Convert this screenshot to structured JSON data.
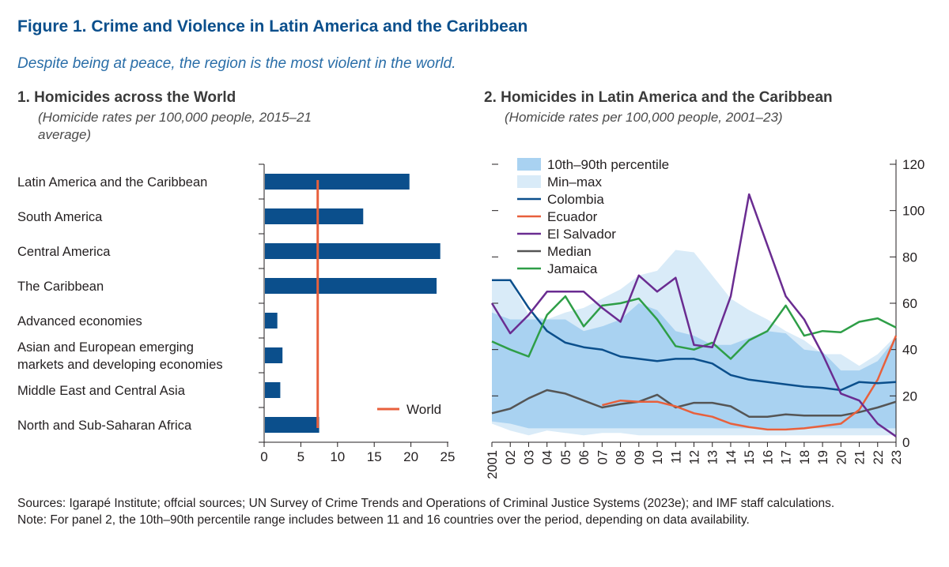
{
  "figure": {
    "title": "Figure 1. Crime and Violence in Latin America and the Caribbean",
    "subtitle": "Despite being at peace, the region is the most violent in the world."
  },
  "panel1": {
    "title": "1. Homicides across the World",
    "subtitle_line1": "(Homicide rates per 100,000 people, 2015–21",
    "subtitle_line2": "average)"
  },
  "panel2": {
    "title": "2. Homicides in Latin America and the Caribbean",
    "subtitle": "(Homicide rates per 100,000 people, 2001–23)"
  },
  "footer": {
    "sources": "Sources: Igarapé Institute; offcial sources; UN Survey of Crime Trends and Operations of Criminal Justice Systems (2023e); and IMF staff calculations.",
    "note": "Note: For panel 2, the 10th–90th percentile range includes between 11 and 16 countries over the period, depending on data availability."
  },
  "colors": {
    "bar": "#0b4f8c",
    "world_line": "#e8603c",
    "band_inner": "#a9d2f1",
    "band_outer": "#d9ebf8",
    "colombia": "#0b4f8c",
    "ecuador": "#e8603c",
    "el_salvador": "#6a2c91",
    "median": "#555555",
    "jamaica": "#2e9e47"
  },
  "chart_data": [
    {
      "type": "bar",
      "orientation": "horizontal",
      "categories": [
        [
          "Latin America and the Caribbean"
        ],
        [
          "South America"
        ],
        [
          "Central America"
        ],
        [
          "The Caribbean"
        ],
        [
          "Advanced economies"
        ],
        [
          "Asian and European emerging",
          "markets and developing economies"
        ],
        [
          "Middle East and Central Asia"
        ],
        [
          "North and Sub-Saharan Africa"
        ]
      ],
      "values": [
        19.8,
        13.5,
        24.0,
        23.5,
        1.8,
        2.5,
        2.2,
        7.5
      ],
      "reference_line": {
        "name": "World",
        "value": 7.3
      },
      "xlim": [
        0,
        25
      ],
      "xticks": [
        0,
        5,
        10,
        15,
        20,
        25
      ],
      "legend": "bottom-right"
    },
    {
      "type": "line",
      "x": [
        "2001",
        "02",
        "03",
        "04",
        "05",
        "06",
        "07",
        "08",
        "09",
        "10",
        "11",
        "12",
        "13",
        "14",
        "15",
        "16",
        "17",
        "18",
        "19",
        "20",
        "21",
        "22",
        "23"
      ],
      "ylim": [
        0,
        120
      ],
      "yticks": [
        0,
        20,
        40,
        60,
        80,
        100,
        120
      ],
      "y_axis_side": "right",
      "bands": [
        {
          "name": "Min–max",
          "lower": [
            8,
            5,
            3,
            5,
            4,
            3,
            4,
            4,
            3,
            3,
            3,
            3,
            3,
            3,
            3,
            3,
            3,
            3,
            3,
            3,
            3,
            3,
            3
          ],
          "upper": [
            70,
            70,
            55,
            53,
            56,
            58,
            62,
            66,
            72,
            74,
            83,
            82,
            72,
            62,
            57,
            53,
            48,
            44,
            38,
            38,
            33,
            38,
            46
          ]
        },
        {
          "name": "10th–90th percentile",
          "lower": [
            9,
            8,
            6,
            6,
            6,
            6,
            6,
            6,
            6,
            6,
            6,
            6,
            6,
            6,
            6,
            6,
            6,
            6,
            6,
            6,
            6,
            6,
            6
          ],
          "upper": [
            56,
            53,
            53,
            53,
            53,
            48,
            50,
            53,
            60,
            57,
            48,
            46,
            42,
            42,
            45,
            48,
            47,
            40,
            39,
            31,
            31,
            35,
            45
          ]
        }
      ],
      "series": [
        {
          "name": "Colombia",
          "values": [
            70,
            70,
            58,
            48,
            43,
            41,
            40,
            37,
            36,
            35,
            36,
            36,
            34,
            29,
            27,
            26,
            25,
            24,
            23.5,
            22.5,
            26,
            25.5,
            26
          ]
        },
        {
          "name": "Ecuador",
          "values": [
            null,
            null,
            null,
            null,
            null,
            null,
            16,
            18,
            17.5,
            17.5,
            15.5,
            12.5,
            11,
            8,
            6.5,
            5.5,
            5.5,
            6,
            7,
            8,
            14,
            27,
            46
          ]
        },
        {
          "name": "El Salvador",
          "values": [
            60,
            47,
            55,
            65,
            65,
            65,
            58,
            52,
            72,
            65,
            71,
            42,
            41,
            63,
            107,
            85,
            63,
            53,
            38,
            21,
            18,
            8,
            2.5
          ]
        },
        {
          "name": "Median",
          "values": [
            12.5,
            14.5,
            19,
            22.5,
            21,
            18,
            15,
            16.5,
            17.5,
            20.5,
            15,
            17,
            17,
            15.5,
            11,
            11,
            12,
            11.5,
            11.5,
            11.5,
            13,
            15,
            17.5
          ]
        },
        {
          "name": "Jamaica",
          "values": [
            43.5,
            40,
            37,
            55,
            63,
            50,
            59,
            60,
            62,
            53,
            41.5,
            40,
            43,
            36,
            44,
            48,
            59,
            46,
            48,
            47.5,
            52,
            53.5,
            49.5
          ]
        }
      ],
      "legend": "top-left"
    }
  ]
}
